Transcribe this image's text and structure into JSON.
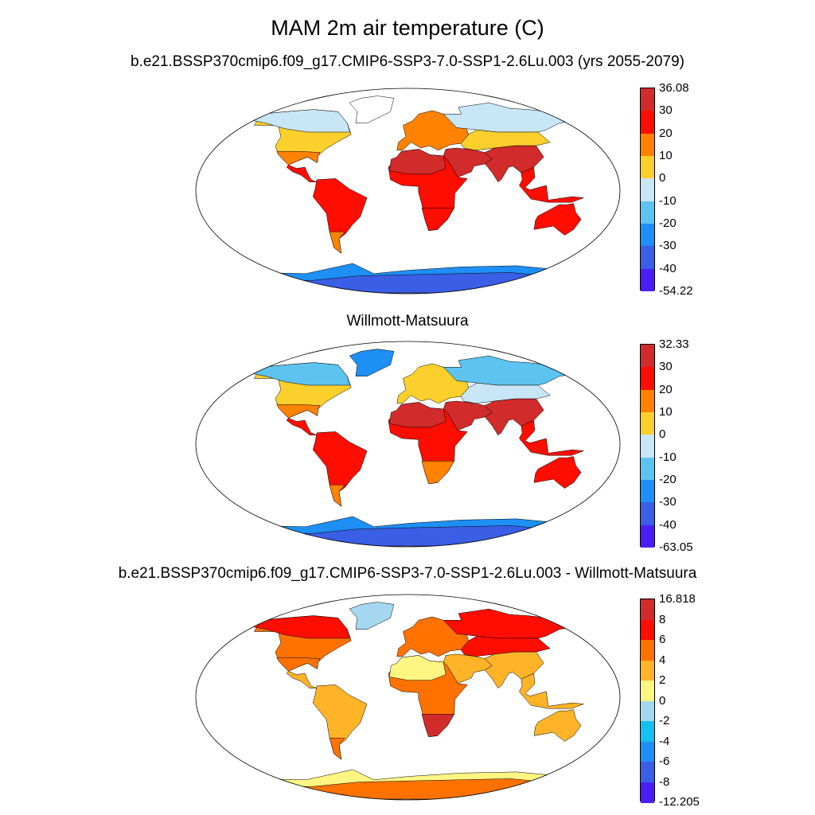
{
  "title": "MAM 2m air temperature (C)",
  "panels": [
    {
      "id": "model",
      "title": "b.e21.BSSP370cmip6.f09_g17.CMIP6-SSP3-7.0-SSP1-2.6Lu.003 (yrs 2055-2079)",
      "colorbar": {
        "labels": [
          "36.08",
          "30",
          "20",
          "10",
          "0",
          "-10",
          "-20",
          "-30",
          "-40",
          "-54.22"
        ],
        "colors": [
          "#d22b2b",
          "#ff0d00",
          "#ff8200",
          "#fcd02c",
          "#c8e6f5",
          "#5dc3f0",
          "#1e8ff5",
          "#3a5ee6",
          "#4a1ef5"
        ]
      },
      "fill": {
        "northAmerica": "#fcd02c",
        "canada": "#c8e6f5",
        "usSouth": "#ff8200",
        "centralAmerica": "#ff0d00",
        "greenland": "#ffffff",
        "southAmerica": "#ff0d00",
        "patagonia": "#ff8200",
        "europe": "#ff8200",
        "siberia": "#c8e6f5",
        "centralAsia": "#fcd02c",
        "middleEast": "#d22b2b",
        "southAsia": "#d22b2b",
        "africa": "#ff0d00",
        "sahara": "#d22b2b",
        "southAfrica": "#ff0d00",
        "seAsia": "#ff0d00",
        "australia": "#ff0d00",
        "antarctica": "#3a5ee6",
        "antarcticaEdge": "#1e8ff5"
      }
    },
    {
      "id": "obs",
      "title": "Willmott-Matsuura",
      "colorbar": {
        "labels": [
          "32.33",
          "30",
          "20",
          "10",
          "0",
          "-10",
          "-20",
          "-30",
          "-40",
          "-63.05"
        ],
        "colors": [
          "#d22b2b",
          "#ff0d00",
          "#ff8200",
          "#fcd02c",
          "#c8e6f5",
          "#5dc3f0",
          "#1e8ff5",
          "#3a5ee6",
          "#4a1ef5"
        ]
      },
      "fill": {
        "northAmerica": "#fcd02c",
        "canada": "#5dc3f0",
        "usSouth": "#ff8200",
        "centralAmerica": "#ff0d00",
        "greenland": "#1e8ff5",
        "southAmerica": "#ff0d00",
        "patagonia": "#ff8200",
        "europe": "#fcd02c",
        "siberia": "#5dc3f0",
        "centralAsia": "#c8e6f5",
        "middleEast": "#d22b2b",
        "southAsia": "#d22b2b",
        "africa": "#ff0d00",
        "sahara": "#d22b2b",
        "southAfrica": "#ff8200",
        "seAsia": "#ff0d00",
        "australia": "#ff0d00",
        "antarctica": "#3a5ee6",
        "antarcticaEdge": "#1e8ff5"
      }
    },
    {
      "id": "diff",
      "title": "b.e21.BSSP370cmip6.f09_g17.CMIP6-SSP3-7.0-SSP1-2.6Lu.003 - Willmott-Matsuura",
      "colorbar": {
        "labels": [
          "16.818",
          "8",
          "6",
          "4",
          "2",
          "0",
          "-2",
          "-4",
          "-6",
          "-8",
          "-12.205"
        ],
        "colors": [
          "#d22b2b",
          "#ff0d00",
          "#ff7200",
          "#ffb428",
          "#fff582",
          "#a5d8f0",
          "#14c0f0",
          "#1e8ff5",
          "#3a5ee6",
          "#4a1ef5"
        ]
      },
      "fill": {
        "northAmerica": "#ff7200",
        "canada": "#ff0d00",
        "usSouth": "#ff7200",
        "centralAmerica": "#ffb428",
        "greenland": "#a5d8f0",
        "southAmerica": "#ffb428",
        "patagonia": "#ff7200",
        "europe": "#ff7200",
        "siberia": "#ff0d00",
        "centralAsia": "#ff0d00",
        "middleEast": "#ffb428",
        "southAsia": "#ffb428",
        "africa": "#ff7200",
        "sahara": "#fff582",
        "southAfrica": "#d22b2b",
        "seAsia": "#ffb428",
        "australia": "#ffb428",
        "antarctica": "#ff7200",
        "antarcticaEdge": "#fff582"
      }
    }
  ]
}
